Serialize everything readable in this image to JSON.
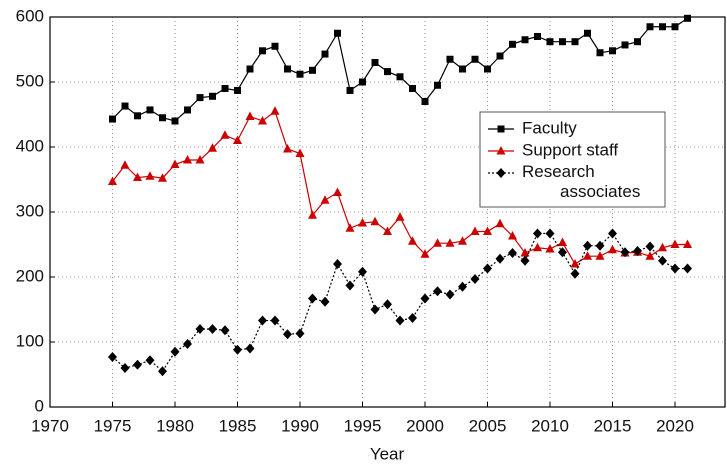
{
  "chart_data": {
    "type": "line",
    "x_label": "Year",
    "x": [
      1975,
      1976,
      1977,
      1978,
      1979,
      1980,
      1981,
      1982,
      1983,
      1984,
      1985,
      1986,
      1987,
      1988,
      1989,
      1990,
      1991,
      1992,
      1993,
      1994,
      1995,
      1996,
      1997,
      1998,
      1999,
      2000,
      2001,
      2002,
      2003,
      2004,
      2005,
      2006,
      2007,
      2008,
      2009,
      2010,
      2011,
      2012,
      2013,
      2014,
      2015,
      2016,
      2017,
      2018,
      2019,
      2020,
      2021
    ],
    "series": [
      {
        "name": "Faculty",
        "color": "#000000",
        "marker": "square",
        "dash": "solid",
        "values": [
          443,
          463,
          448,
          457,
          445,
          440,
          457,
          476,
          478,
          490,
          487,
          520,
          548,
          555,
          520,
          512,
          518,
          543,
          575,
          487,
          500,
          530,
          516,
          508,
          490,
          470,
          495,
          535,
          520,
          535,
          520,
          540,
          558,
          565,
          570,
          562,
          562,
          562,
          575,
          545,
          548,
          557,
          562,
          585,
          585,
          585,
          598
        ]
      },
      {
        "name": "Support staff",
        "color": "#cc0000",
        "marker": "triangle",
        "dash": "solid",
        "values": [
          347,
          372,
          353,
          355,
          352,
          373,
          380,
          380,
          398,
          418,
          410,
          447,
          440,
          455,
          397,
          390,
          295,
          318,
          330,
          275,
          283,
          285,
          270,
          292,
          255,
          235,
          252,
          252,
          255,
          270,
          270,
          282,
          263,
          237,
          245,
          243,
          253,
          220,
          232,
          232,
          242,
          237,
          238,
          232,
          245,
          250,
          250
        ]
      },
      {
        "name": "Research associates",
        "color": "#000000",
        "marker": "diamond",
        "dash": "dotted",
        "values": [
          77,
          60,
          65,
          72,
          55,
          85,
          97,
          120,
          120,
          118,
          88,
          90,
          133,
          133,
          112,
          113,
          167,
          162,
          220,
          187,
          208,
          150,
          158,
          133,
          137,
          167,
          178,
          173,
          185,
          197,
          213,
          228,
          237,
          225,
          267,
          267,
          238,
          205,
          248,
          248,
          267,
          238,
          240,
          247,
          225,
          213,
          213
        ]
      }
    ],
    "xlim": [
      1970,
      2024
    ],
    "xticks": [
      1970,
      1975,
      1980,
      1985,
      1990,
      1995,
      2000,
      2005,
      2010,
      2015,
      2020
    ],
    "ylim": [
      0,
      600
    ],
    "yticks": [
      0,
      100,
      200,
      300,
      400,
      500,
      600
    ],
    "grid": true
  }
}
